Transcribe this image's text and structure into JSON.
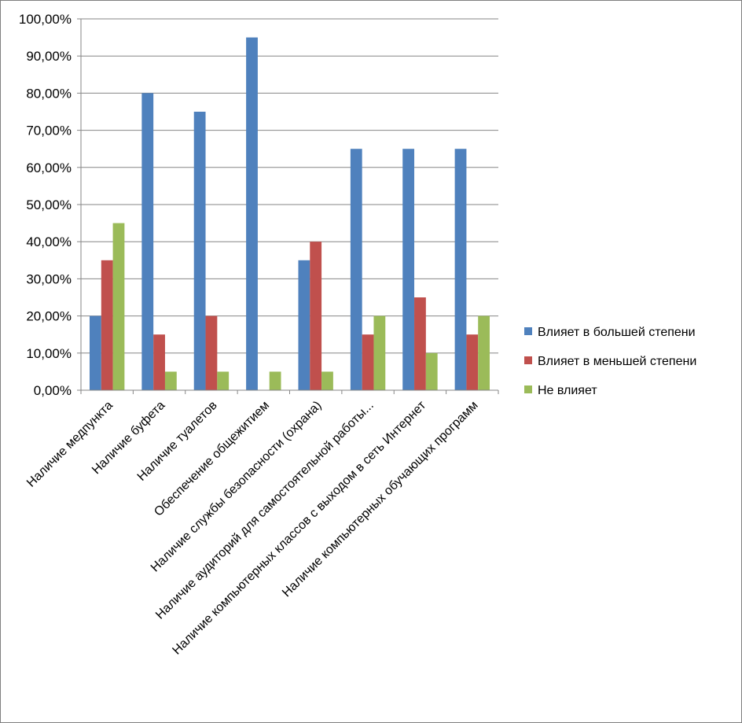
{
  "chart_data": {
    "type": "bar",
    "title": "",
    "xlabel": "",
    "ylabel": "",
    "ylim": [
      0,
      1
    ],
    "y_ticks": [
      "0,00%",
      "10,00%",
      "20,00%",
      "30,00%",
      "40,00%",
      "50,00%",
      "60,00%",
      "70,00%",
      "80,00%",
      "90,00%",
      "100,00%"
    ],
    "categories": [
      "Наличие медпункта",
      "Наличие буфета",
      "Наличие туалетов",
      "Обеспечение общежитием",
      "Наличие службы безопасности (охрана)",
      "Наличие аудиторий для самостоятельной работы...",
      "Наличие компьютерных классов с выходом в сеть Интернет",
      "Наличие компьютерных обучающих программ"
    ],
    "series": [
      {
        "name": "Влияет в большей степени",
        "color": "#4F81BD",
        "values": [
          0.2,
          0.8,
          0.75,
          0.95,
          0.35,
          0.65,
          0.65,
          0.65
        ]
      },
      {
        "name": "Влияет в меньшей степени",
        "color": "#C0504D",
        "values": [
          0.35,
          0.15,
          0.2,
          0.0,
          0.4,
          0.15,
          0.25,
          0.15
        ]
      },
      {
        "name": "Не влияет",
        "color": "#9BBB59",
        "values": [
          0.45,
          0.05,
          0.05,
          0.05,
          0.05,
          0.2,
          0.1,
          0.2
        ]
      }
    ],
    "grid": true,
    "legend_position": "right"
  }
}
